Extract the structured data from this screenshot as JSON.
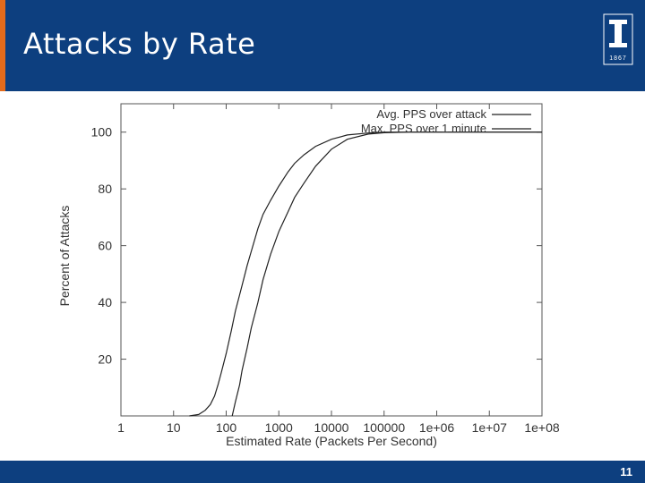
{
  "slide": {
    "title": "Attacks by Rate",
    "page_number": "11",
    "logo_year": "1867",
    "colors": {
      "header": "#0d3f7f",
      "accent": "#e36b1c",
      "footer": "#0d3f7f"
    }
  },
  "chart_data": {
    "type": "line",
    "title": "",
    "xlabel": "Estimated Rate (Packets Per Second)",
    "ylabel": "Percent of Attacks",
    "x_scale": "log10",
    "xlim": [
      1,
      100000000
    ],
    "ylim": [
      0,
      110
    ],
    "x_ticks": [
      {
        "value": 1,
        "label": "1"
      },
      {
        "value": 10,
        "label": "10"
      },
      {
        "value": 100,
        "label": "100"
      },
      {
        "value": 1000,
        "label": "1000"
      },
      {
        "value": 10000,
        "label": "10000"
      },
      {
        "value": 100000,
        "label": "100000"
      },
      {
        "value": 1000000,
        "label": "1e+06"
      },
      {
        "value": 10000000,
        "label": "1e+07"
      },
      {
        "value": 100000000,
        "label": "1e+08"
      }
    ],
    "y_ticks": [
      {
        "value": 20,
        "label": "20"
      },
      {
        "value": 40,
        "label": "40"
      },
      {
        "value": 60,
        "label": "60"
      },
      {
        "value": 80,
        "label": "80"
      },
      {
        "value": 100,
        "label": "100"
      }
    ],
    "legend_position": "top-right",
    "grid": false,
    "series": [
      {
        "name": "Avg. PPS over attack",
        "points": [
          [
            20,
            0
          ],
          [
            30,
            0.5
          ],
          [
            40,
            2
          ],
          [
            50,
            4
          ],
          [
            60,
            7
          ],
          [
            70,
            11
          ],
          [
            80,
            15
          ],
          [
            100,
            22
          ],
          [
            125,
            30
          ],
          [
            150,
            37
          ],
          [
            200,
            46
          ],
          [
            250,
            53
          ],
          [
            300,
            58
          ],
          [
            400,
            66
          ],
          [
            500,
            71
          ],
          [
            700,
            76
          ],
          [
            1000,
            81
          ],
          [
            1500,
            86
          ],
          [
            2000,
            89
          ],
          [
            3000,
            92
          ],
          [
            5000,
            95
          ],
          [
            10000,
            97.5
          ],
          [
            20000,
            99
          ],
          [
            50000,
            99.7
          ],
          [
            100000,
            100
          ],
          [
            1000000,
            100
          ],
          [
            100000000,
            100
          ]
        ]
      },
      {
        "name": "Max. PPS over 1 minute",
        "points": [
          [
            130,
            0
          ],
          [
            150,
            5
          ],
          [
            180,
            11
          ],
          [
            200,
            16
          ],
          [
            250,
            24
          ],
          [
            300,
            31
          ],
          [
            400,
            40
          ],
          [
            500,
            48
          ],
          [
            700,
            57
          ],
          [
            1000,
            65
          ],
          [
            1500,
            72
          ],
          [
            2000,
            77
          ],
          [
            3000,
            82
          ],
          [
            5000,
            88
          ],
          [
            10000,
            94
          ],
          [
            20000,
            97.5
          ],
          [
            50000,
            99.3
          ],
          [
            100000,
            99.8
          ],
          [
            300000,
            100
          ],
          [
            100000000,
            100
          ]
        ]
      }
    ]
  }
}
